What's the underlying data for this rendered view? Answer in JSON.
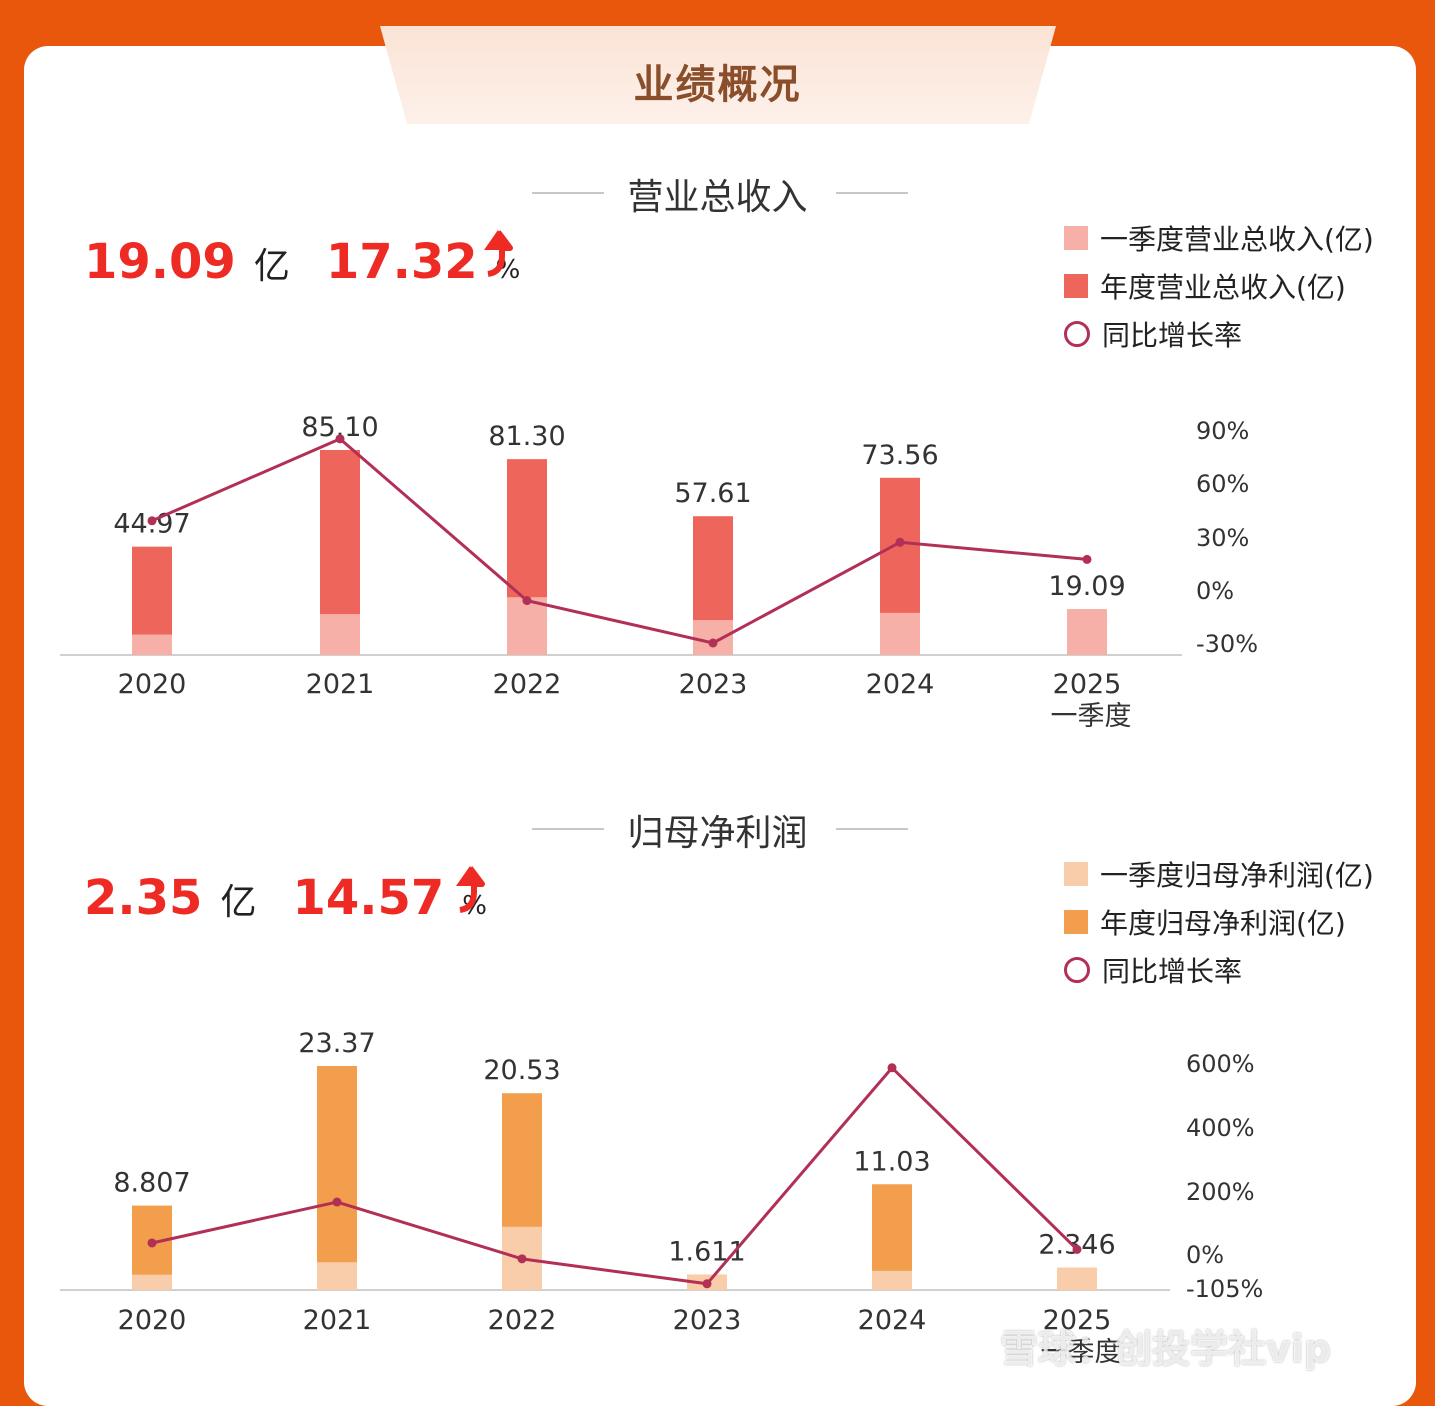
{
  "header": {
    "title": "业绩概况"
  },
  "colors": {
    "background": "#e9570d",
    "kpi_red": "#ee2a24",
    "line": "#b22f55"
  },
  "sections": [
    {
      "title": "营业总收入",
      "kpi": {
        "value": "19.09",
        "unit": "亿",
        "growth": "17.32",
        "growth_unit": "%"
      },
      "legend": [
        "一季度营业总收入(亿)",
        "年度营业总收入(亿)",
        "同比增长率"
      ]
    },
    {
      "title": "归母净利润",
      "kpi": {
        "value": "2.35",
        "unit": "亿",
        "growth": "14.57",
        "growth_unit": "%"
      },
      "legend": [
        "一季度归母净利润(亿)",
        "年度归母净利润(亿)",
        "同比增长率"
      ]
    }
  ],
  "watermark": "雪球：创投学社vip",
  "chart_data": [
    {
      "type": "bar",
      "categories": [
        "2020",
        "2021",
        "2022",
        "2023",
        "2024",
        "2025"
      ],
      "category_sublabels": [
        "",
        "",
        "",
        "",
        "",
        "一季度"
      ],
      "series": [
        {
          "name": "一季度营业总收入(亿)",
          "values": [
            8.5,
            17.0,
            24.0,
            14.5,
            17.5,
            19.09
          ],
          "color": "#f6b0a7"
        },
        {
          "name": "年度营业总收入(亿)",
          "values": [
            44.97,
            85.1,
            81.3,
            57.61,
            73.56,
            null
          ],
          "color": "#ee665b"
        },
        {
          "name": "同比增长率",
          "type": "line",
          "values": [
            39,
            85,
            -6,
            -30,
            27,
            17.32
          ],
          "color": "#b22f55"
        }
      ],
      "data_labels": [
        "44.97",
        "85.10",
        "81.30",
        "57.61",
        "73.56",
        "19.09"
      ],
      "y_right_ticks": [
        "90%",
        "60%",
        "30%",
        "0%",
        "-30%"
      ],
      "y_right_values": [
        90,
        60,
        30,
        0,
        -30
      ]
    },
    {
      "type": "bar",
      "categories": [
        "2020",
        "2021",
        "2022",
        "2023",
        "2024",
        "2025"
      ],
      "category_sublabels": [
        "",
        "",
        "",
        "",
        "",
        "一季度"
      ],
      "series": [
        {
          "name": "一季度归母净利润(亿)",
          "values": [
            1.6,
            2.9,
            6.6,
            1.611,
            2.0,
            2.346
          ],
          "color": "#f9ccaa"
        },
        {
          "name": "年度归母净利润(亿)",
          "values": [
            8.807,
            23.37,
            20.53,
            1.611,
            11.03,
            null
          ],
          "color": "#f29e4c"
        },
        {
          "name": "同比增长率",
          "type": "line",
          "values": [
            35,
            165,
            -15,
            -92,
            585,
            14.57
          ],
          "color": "#b22f55"
        }
      ],
      "data_labels": [
        "8.807",
        "23.37",
        "20.53",
        "1.611",
        "11.03",
        "2.346"
      ],
      "y_right_ticks": [
        "600%",
        "400%",
        "200%",
        "0%",
        "-105%"
      ],
      "y_right_values": [
        600,
        400,
        200,
        0,
        -105
      ]
    }
  ]
}
